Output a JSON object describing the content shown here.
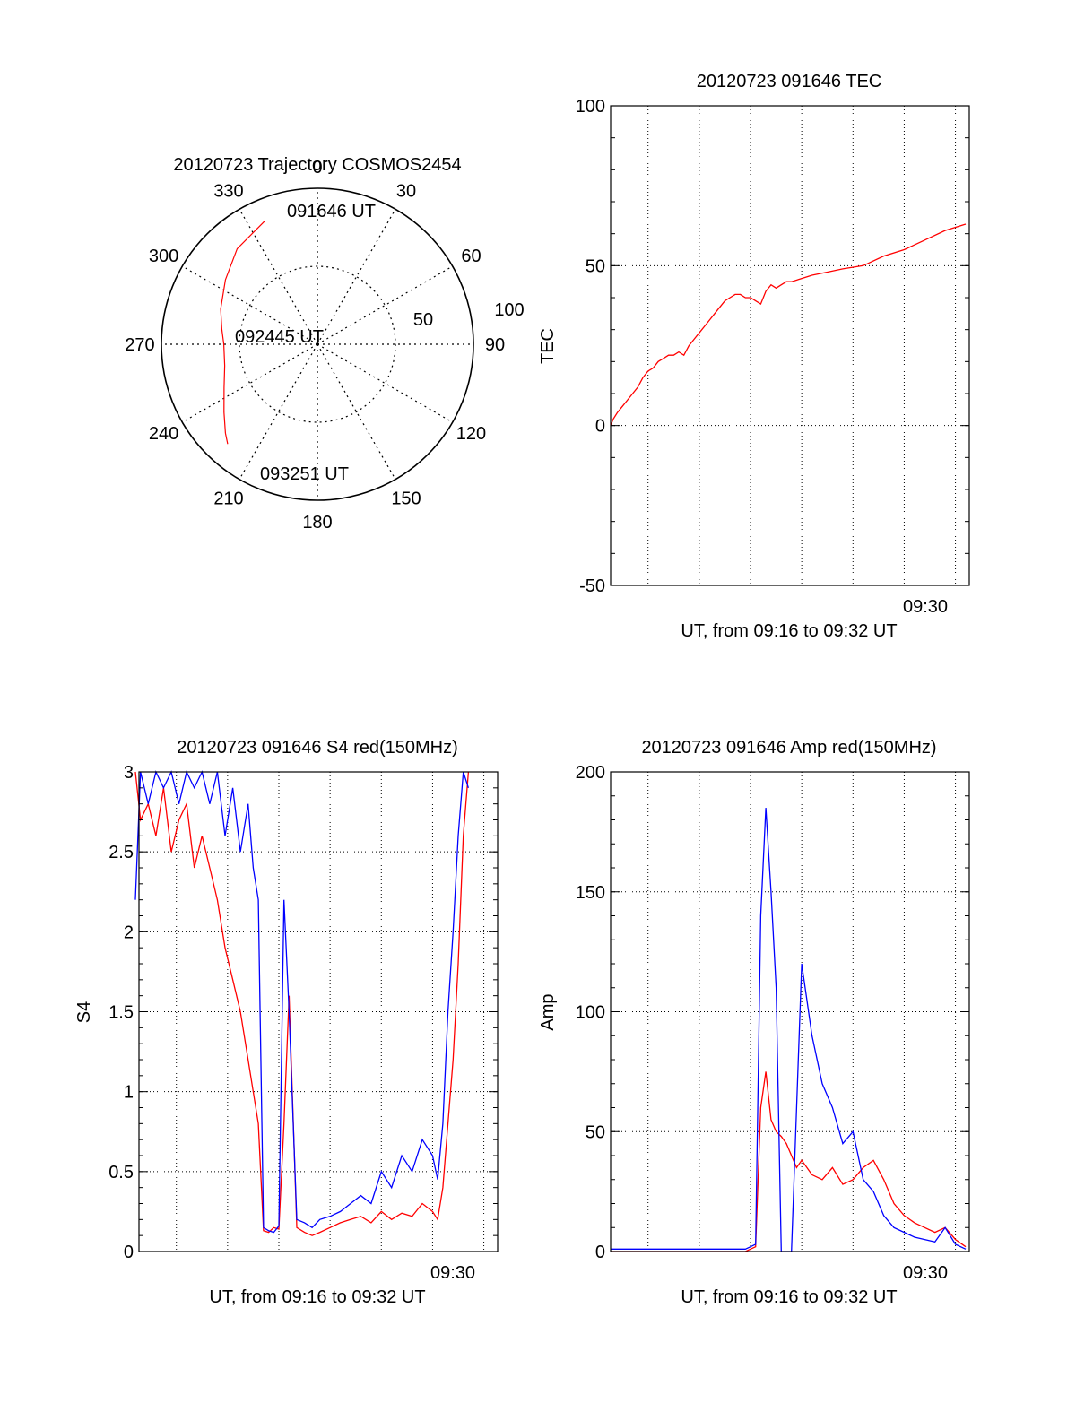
{
  "chart_data": [
    {
      "type": "scatter",
      "projection": "polar",
      "title": "20120723 Trajectory COSMOS2454",
      "azimuth_labels": [
        "0",
        "30",
        "60",
        "90",
        "120",
        "150",
        "180",
        "210",
        "240",
        "270",
        "300",
        "330"
      ],
      "radial_labels": [
        "50",
        "100"
      ],
      "radial_range": [
        0,
        100
      ],
      "grid": true,
      "annotations": [
        "091646 UT",
        "092445 UT",
        "093251 UT"
      ],
      "series": [
        {
          "color": "#ff0000",
          "points": [
            {
              "azimuth": 337,
              "zenith": 86
            },
            {
              "azimuth": 320,
              "zenith": 80
            },
            {
              "azimuth": 305,
              "zenith": 72
            },
            {
              "azimuth": 290,
              "zenith": 66
            },
            {
              "azimuth": 279,
              "zenith": 62
            },
            {
              "azimuth": 270,
              "zenith": 60
            },
            {
              "azimuth": 257,
              "zenith": 61
            },
            {
              "azimuth": 245,
              "zenith": 66
            },
            {
              "azimuth": 234,
              "zenith": 74
            },
            {
              "azimuth": 226,
              "zenith": 82
            },
            {
              "azimuth": 222,
              "zenith": 86
            }
          ]
        }
      ]
    },
    {
      "type": "line",
      "title": "20120723 091646 TEC",
      "ylabel": "TEC",
      "xlabel": "UT, from 09:16 to 09:32 UT",
      "ylim": [
        -50,
        100
      ],
      "yticks": [
        "-50",
        "0",
        "50",
        "100"
      ],
      "xtick_label": "09:30",
      "grid": true,
      "series": [
        {
          "color": "#ff0000",
          "x": [
            9.27,
            9.32,
            9.4,
            9.5,
            9.6,
            9.7,
            9.8,
            9.9,
            10.0,
            10.1,
            10.2,
            10.3,
            10.4,
            10.5,
            10.6,
            10.7,
            10.8,
            10.9,
            11.0,
            11.1,
            11.2,
            11.3,
            11.4,
            11.5,
            11.6,
            11.7,
            11.8,
            11.9,
            12.0,
            12.1,
            12.2,
            12.3,
            12.4,
            12.5,
            12.6,
            12.7,
            12.8,
            13.0,
            13.2,
            13.5,
            13.8,
            14.2,
            14.6,
            15.0,
            15.4,
            15.8,
            16.2
          ],
          "y": [
            0,
            2,
            4,
            6,
            8,
            10,
            12,
            15,
            17,
            18,
            20,
            21,
            22,
            22,
            23,
            22,
            25,
            27,
            29,
            31,
            33,
            35,
            37,
            39,
            40,
            41,
            41,
            40,
            40,
            39,
            38,
            42,
            44,
            43,
            44,
            45,
            45,
            46,
            47,
            48,
            49,
            50,
            53,
            55,
            58,
            61,
            63
          ]
        }
      ]
    },
    {
      "type": "line",
      "title": "20120723 091646 S4 red(150MHz)",
      "ylabel": "S4",
      "xlabel": "UT, from 09:16 to 09:32 UT",
      "ylim": [
        0,
        3
      ],
      "yticks": [
        "0",
        "0.5",
        "1",
        "1.5",
        "2",
        "2.5",
        "3"
      ],
      "xtick_label": "09:30",
      "grid": true,
      "series": [
        {
          "color": "#ff0000",
          "x": [
            9.2,
            9.3,
            9.45,
            9.6,
            9.75,
            9.9,
            10.05,
            10.2,
            10.35,
            10.5,
            10.65,
            10.8,
            10.95,
            11.1,
            11.25,
            11.4,
            11.5,
            11.6,
            11.7,
            11.8,
            11.9,
            12.0,
            12.1,
            12.2,
            12.35,
            12.5,
            12.65,
            12.8,
            13.0,
            13.2,
            13.4,
            13.6,
            13.8,
            14.0,
            14.2,
            14.4,
            14.6,
            14.8,
            15.0,
            15.1,
            15.2,
            15.3,
            15.4,
            15.5,
            15.6,
            15.7
          ],
          "y": [
            3.0,
            2.7,
            2.8,
            2.6,
            2.9,
            2.5,
            2.7,
            2.8,
            2.4,
            2.6,
            2.4,
            2.2,
            1.9,
            1.7,
            1.5,
            1.2,
            1.0,
            0.8,
            0.13,
            0.12,
            0.15,
            0.14,
            0.8,
            1.6,
            0.15,
            0.12,
            0.1,
            0.12,
            0.15,
            0.18,
            0.2,
            0.22,
            0.18,
            0.25,
            0.2,
            0.24,
            0.22,
            0.3,
            0.25,
            0.2,
            0.4,
            0.8,
            1.2,
            1.8,
            2.6,
            3.0
          ]
        },
        {
          "color": "#0000ff",
          "x": [
            9.2,
            9.3,
            9.45,
            9.6,
            9.75,
            9.9,
            10.05,
            10.2,
            10.35,
            10.5,
            10.65,
            10.8,
            10.95,
            11.1,
            11.25,
            11.4,
            11.5,
            11.6,
            11.7,
            11.8,
            11.9,
            12.0,
            12.1,
            12.2,
            12.35,
            12.5,
            12.65,
            12.8,
            13.0,
            13.2,
            13.4,
            13.6,
            13.8,
            14.0,
            14.2,
            14.4,
            14.6,
            14.8,
            15.0,
            15.1,
            15.2,
            15.3,
            15.4,
            15.5,
            15.6,
            15.7
          ],
          "y": [
            2.2,
            3.0,
            2.8,
            3.0,
            2.9,
            3.0,
            2.8,
            3.0,
            2.9,
            3.0,
            2.8,
            3.0,
            2.6,
            2.9,
            2.5,
            2.8,
            2.4,
            2.2,
            0.15,
            0.13,
            0.12,
            0.16,
            2.2,
            1.5,
            0.2,
            0.18,
            0.15,
            0.2,
            0.22,
            0.25,
            0.3,
            0.35,
            0.3,
            0.5,
            0.4,
            0.6,
            0.5,
            0.7,
            0.6,
            0.45,
            0.8,
            1.5,
            2.0,
            2.6,
            3.0,
            2.9
          ]
        }
      ]
    },
    {
      "type": "line",
      "title": "20120723 091646 Amp red(150MHz)",
      "ylabel": "Amp",
      "xlabel": "UT, from 09:16 to 09:32 UT",
      "ylim": [
        0,
        200
      ],
      "yticks": [
        "0",
        "50",
        "100",
        "150",
        "200"
      ],
      "xtick_label": "09:30",
      "grid": true,
      "series": [
        {
          "color": "#ff0000",
          "x": [
            9.27,
            10.0,
            11.0,
            11.9,
            12.0,
            12.1,
            12.2,
            12.3,
            12.4,
            12.5,
            12.6,
            12.7,
            12.8,
            12.9,
            13.0,
            13.2,
            13.4,
            13.6,
            13.8,
            14.0,
            14.2,
            14.4,
            14.6,
            14.8,
            15.0,
            15.2,
            15.4,
            15.6,
            15.8,
            16.0,
            16.2
          ],
          "y": [
            0,
            0,
            0,
            0,
            1,
            2,
            60,
            75,
            55,
            50,
            48,
            45,
            40,
            35,
            38,
            32,
            30,
            35,
            28,
            30,
            35,
            38,
            30,
            20,
            15,
            12,
            10,
            8,
            10,
            5,
            2
          ]
        },
        {
          "color": "#0000ff",
          "x": [
            9.27,
            10.0,
            11.0,
            11.9,
            12.0,
            12.1,
            12.2,
            12.3,
            12.4,
            12.5,
            12.6,
            12.7,
            12.8,
            12.9,
            13.0,
            13.2,
            13.4,
            13.6,
            13.8,
            14.0,
            14.2,
            14.4,
            14.6,
            14.8,
            15.0,
            15.2,
            15.4,
            15.6,
            15.8,
            16.0,
            16.2
          ],
          "y": [
            1,
            1,
            1,
            1,
            2,
            3,
            140,
            185,
            150,
            110,
            0,
            0,
            0,
            60,
            120,
            90,
            70,
            60,
            45,
            50,
            30,
            25,
            15,
            10,
            8,
            6,
            5,
            4,
            10,
            3,
            1
          ]
        }
      ]
    }
  ]
}
